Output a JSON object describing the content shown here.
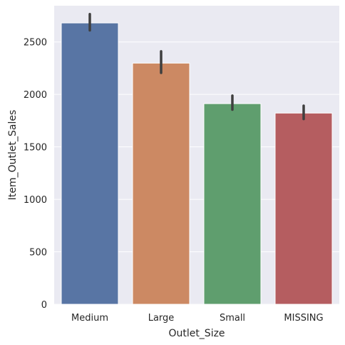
{
  "chart_data": {
    "type": "bar",
    "categories": [
      "Medium",
      "Large",
      "Small",
      "MISSING"
    ],
    "values": [
      2681,
      2298,
      1912,
      1822
    ],
    "ci_low": [
      2610,
      2205,
      1855,
      1765
    ],
    "ci_high": [
      2765,
      2410,
      1988,
      1892
    ],
    "colors": [
      "#5875a4",
      "#cc8963",
      "#5f9e6e",
      "#b55d60"
    ],
    "xlabel": "Outlet_Size",
    "ylabel": "Item_Outlet_Sales",
    "ylim": [
      0,
      2845
    ],
    "yticks": [
      0,
      500,
      1000,
      1500,
      2000,
      2500
    ],
    "grid": true,
    "background": "#eaeaf2",
    "errorbar_color": "#3f3f3f"
  }
}
